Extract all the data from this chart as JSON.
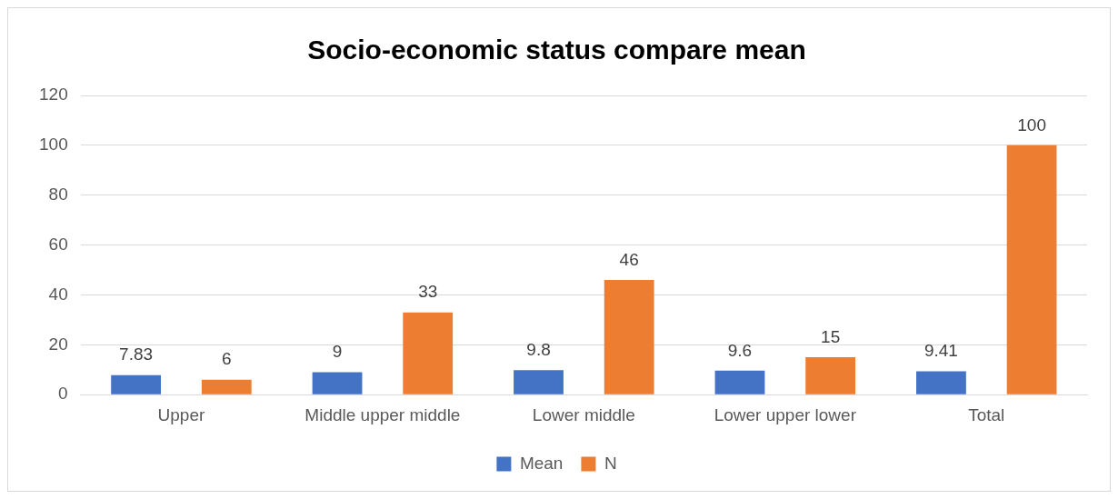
{
  "chart_data": {
    "type": "bar",
    "title": "Socio-economic status compare mean",
    "categories": [
      "Upper",
      "Middle upper middle",
      "Lower middle",
      "Lower upper lower",
      "Total"
    ],
    "series": [
      {
        "name": "Mean",
        "color": "#4472c4",
        "values": [
          7.83,
          9,
          9.8,
          9.6,
          9.41
        ]
      },
      {
        "name": "N",
        "color": "#ed7d31",
        "values": [
          6,
          33,
          46,
          15,
          100
        ]
      }
    ],
    "ylim": [
      0,
      120
    ],
    "yticks": [
      0,
      20,
      40,
      60,
      80,
      100,
      120
    ],
    "grid": "y",
    "legend": "bottom",
    "data_labels": true
  }
}
